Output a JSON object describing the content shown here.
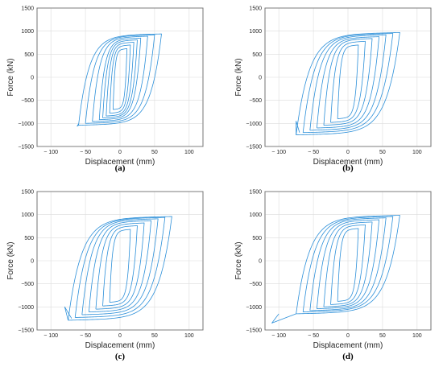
{
  "colors": {
    "series": "#2b8fd9",
    "axis": "#262626",
    "grid": "#dcdcdc"
  },
  "chart_data": [
    {
      "type": "line",
      "panel_label": "(a)",
      "xlabel": "Displacement (mm)",
      "ylabel": "Force (kN)",
      "xlim": [
        -120,
        120
      ],
      "ylim": [
        -1500,
        1500
      ],
      "xticks": [
        -100,
        -50,
        0,
        50,
        100
      ],
      "yticks": [
        -1500,
        -1000,
        -500,
        0,
        500,
        1000,
        1500
      ],
      "grid": true,
      "loop_amplitudes_mm": [
        10,
        15,
        20,
        25,
        30,
        40,
        50,
        60
      ],
      "peak_force_kN": [
        620,
        700,
        760,
        810,
        850,
        890,
        920,
        940
      ],
      "min_force_kN": [
        -700,
        -780,
        -840,
        -880,
        -920,
        -960,
        -1000,
        -1040
      ],
      "tail": [
        [
          -62,
          -1060
        ],
        [
          -60,
          -1010
        ]
      ]
    },
    {
      "type": "line",
      "panel_label": "(b)",
      "xlabel": "Displacement (mm)",
      "ylabel": "Force (kN)",
      "xlim": [
        -120,
        120
      ],
      "ylim": [
        -1500,
        1500
      ],
      "xticks": [
        -100,
        -50,
        0,
        50,
        100
      ],
      "yticks": [
        -1500,
        -1000,
        -500,
        0,
        500,
        1000,
        1500
      ],
      "grid": true,
      "loop_amplitudes_mm": [
        15,
        25,
        35,
        45,
        55,
        65,
        75
      ],
      "peak_force_kN": [
        700,
        780,
        840,
        880,
        920,
        950,
        970
      ],
      "min_force_kN": [
        -900,
        -980,
        -1040,
        -1100,
        -1150,
        -1200,
        -1250
      ],
      "tail": [
        [
          -75,
          -950
        ],
        [
          -70,
          -1200
        ]
      ]
    },
    {
      "type": "line",
      "panel_label": "(c)",
      "xlabel": "Displacement (mm)",
      "ylabel": "Force (kN)",
      "xlim": [
        -120,
        120
      ],
      "ylim": [
        -1500,
        1500
      ],
      "xticks": [
        -100,
        -50,
        0,
        50,
        100
      ],
      "yticks": [
        -1500,
        -1000,
        -500,
        0,
        500,
        1000,
        1500
      ],
      "grid": true,
      "loop_amplitudes_mm": [
        15,
        25,
        35,
        45,
        55,
        65,
        75
      ],
      "peak_force_kN": [
        680,
        760,
        820,
        870,
        910,
        940,
        960
      ],
      "min_force_kN": [
        -900,
        -980,
        -1050,
        -1110,
        -1170,
        -1230,
        -1290
      ],
      "tail": [
        [
          -80,
          -1000
        ],
        [
          -70,
          -1250
        ]
      ]
    },
    {
      "type": "line",
      "panel_label": "(d)",
      "xlabel": "Displacement (mm)",
      "ylabel": "Force (kN)",
      "xlim": [
        -120,
        120
      ],
      "ylim": [
        -1500,
        1500
      ],
      "xticks": [
        -100,
        -50,
        0,
        50,
        100
      ],
      "yticks": [
        -1500,
        -1000,
        -500,
        0,
        500,
        1000,
        1500
      ],
      "grid": true,
      "loop_amplitudes_mm": [
        15,
        25,
        35,
        45,
        55,
        65,
        75
      ],
      "peak_force_kN": [
        700,
        780,
        840,
        890,
        930,
        960,
        985
      ],
      "min_force_kN": [
        -880,
        -950,
        -1000,
        -1040,
        -1080,
        -1110,
        -1150
      ],
      "tail": [
        [
          -110,
          -1350
        ],
        [
          -105,
          -1250
        ],
        [
          -100,
          -1150
        ]
      ]
    }
  ]
}
